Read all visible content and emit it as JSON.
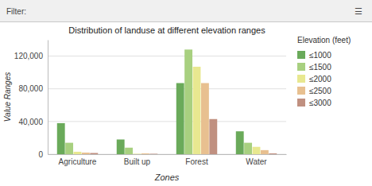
{
  "chart_data": {
    "type": "bar",
    "title": "Distribution of landuse at different elevation ranges",
    "xlabel": "Zones",
    "ylabel": "Value Ranges",
    "annotations": [
      "Filter:",
      "☰"
    ],
    "categories": [
      "Agriculture",
      "Built up",
      "Forest",
      "Water"
    ],
    "legend_title": "Elevation (feet)",
    "series": [
      {
        "name": "≤1000",
        "color": "#6aaa5a",
        "values": [
          38000,
          18000,
          87000,
          28000
        ]
      },
      {
        "name": "≤1500",
        "color": "#a8d080",
        "values": [
          14000,
          8000,
          128000,
          14000
        ]
      },
      {
        "name": "≤2000",
        "color": "#e8e890",
        "values": [
          3000,
          500,
          107000,
          9000
        ]
      },
      {
        "name": "≤2500",
        "color": "#e8c090",
        "values": [
          2000,
          1000,
          87000,
          5000
        ]
      },
      {
        "name": "≤3000",
        "color": "#c09080",
        "values": [
          1500,
          500,
          43000,
          1000
        ]
      }
    ],
    "ylim": [
      0,
      140000
    ],
    "yticks": [
      0,
      {
        "value": 40000,
        "label": "40,000"
      },
      {
        "value": 80000,
        "label": "80,000"
      },
      {
        "value": 120000,
        "label": "120,000"
      }
    ],
    "grid": true,
    "legend": "right"
  }
}
